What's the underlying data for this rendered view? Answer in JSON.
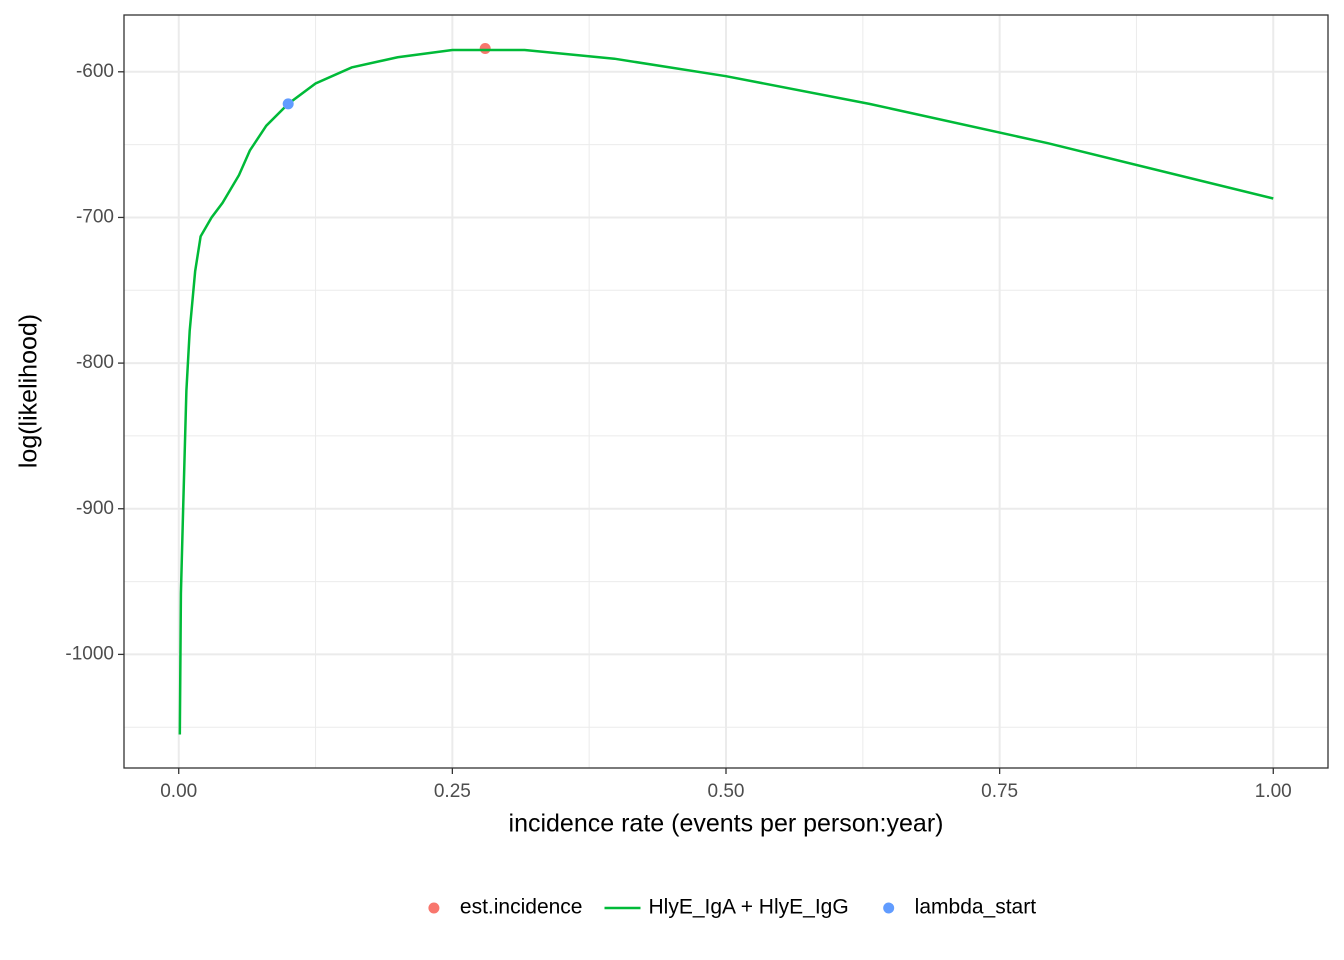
{
  "chart_data": {
    "type": "line",
    "x_label": "incidence rate (events per person:year)",
    "y_label": "log(likelihood)",
    "xlim": [
      -0.05,
      1.05
    ],
    "ylim": [
      -1078,
      -561
    ],
    "xticks": [
      {
        "value": 0,
        "label": "0.00"
      },
      {
        "value": 0.25,
        "label": "0.25"
      },
      {
        "value": 0.5,
        "label": "0.50"
      },
      {
        "value": 0.75,
        "label": "0.75"
      },
      {
        "value": 1,
        "label": "1.00"
      }
    ],
    "yticks": [
      -1000,
      -900,
      -800,
      -700,
      -600
    ],
    "grid": true,
    "legend": "bottom",
    "series": [
      {
        "name": "est.incidence",
        "color": "#F8766D",
        "mark": "point",
        "x": [
          0.28
        ],
        "values": [
          -584
        ]
      },
      {
        "name": "HlyE_IgA + HlyE_IgG",
        "color": "#00BA38",
        "mark": "line",
        "x": [
          0.001,
          0.002,
          0.004,
          0.007,
          0.01,
          0.015,
          0.02,
          0.03,
          0.04,
          0.055,
          0.065,
          0.08,
          0.1,
          0.125,
          0.158,
          0.2,
          0.25,
          0.316,
          0.398,
          0.5,
          0.631,
          0.794,
          1.0
        ],
        "values": [
          -1055,
          -958,
          -901,
          -819,
          -778,
          -737,
          -713,
          -700,
          -690,
          -671,
          -654,
          -637,
          -622,
          -608,
          -597,
          -590,
          -585,
          -585,
          -591,
          -603,
          -622,
          -649,
          -687
        ]
      },
      {
        "name": "lambda_start",
        "color": "#619CFF",
        "mark": "point",
        "x": [
          0.1
        ],
        "values": [
          -622
        ]
      }
    ]
  }
}
